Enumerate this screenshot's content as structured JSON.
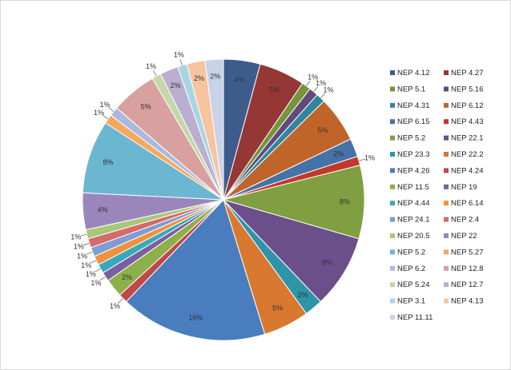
{
  "chart_data": {
    "type": "pie",
    "title": "",
    "legend_position": "right",
    "slices": [
      {
        "name": "NEP 4.12",
        "value": 4,
        "label": "4%",
        "color": "#3D5C8C"
      },
      {
        "name": "NEP 4.27",
        "value": 5,
        "label": "5%",
        "color": "#953735"
      },
      {
        "name": "NEP 5.1",
        "value": 1,
        "label": "1%",
        "color": "#77933C"
      },
      {
        "name": "NEP 5.16",
        "value": 1,
        "label": "1%",
        "color": "#604A7B"
      },
      {
        "name": "NEP 4.31",
        "value": 1,
        "label": "1%",
        "color": "#31859C"
      },
      {
        "name": "NEP 6.12",
        "value": 5,
        "label": "5%",
        "color": "#C0652A"
      },
      {
        "name": "NEP 6.15",
        "value": 2,
        "label": "2%",
        "color": "#4572A7"
      },
      {
        "name": "NEP 4.43",
        "value": 1,
        "label": "1%",
        "color": "#C0392B"
      },
      {
        "name": "NEP 5.2",
        "value": 8,
        "label": "8%",
        "color": "#7F9F40"
      },
      {
        "name": "NEP 22.1",
        "value": 8,
        "label": "8%",
        "color": "#6B4F8B"
      },
      {
        "name": "NEP 23.3",
        "value": 2,
        "label": "2%",
        "color": "#2E95A8"
      },
      {
        "name": "NEP 22.2",
        "value": 5,
        "label": "5%",
        "color": "#D9782F"
      },
      {
        "name": "NEP 4.26",
        "value": 16,
        "label": "16%",
        "color": "#4A7DBE"
      },
      {
        "name": "NEP 4.24",
        "value": 1,
        "label": "1%",
        "color": "#C04848"
      },
      {
        "name": "NEP 11.5",
        "value": 2,
        "label": "2%",
        "color": "#8DB04A"
      },
      {
        "name": "NEP 19",
        "value": 1,
        "label": "1%",
        "color": "#7B5FA0"
      },
      {
        "name": "NEP 4.44",
        "value": 1,
        "label": "1%",
        "color": "#3AA8BC"
      },
      {
        "name": "NEP 6.14",
        "value": 1,
        "label": "1%",
        "color": "#F0913D"
      },
      {
        "name": "NEP 24.1",
        "value": 1,
        "label": "1%",
        "color": "#7F9CD4"
      },
      {
        "name": "NEP 2.4",
        "value": 1,
        "label": "1%",
        "color": "#D46A6A"
      },
      {
        "name": "NEP 20.5",
        "value": 1,
        "label": "1%",
        "color": "#A9C877"
      },
      {
        "name": "NEP 22",
        "value": 4,
        "label": "4%",
        "color": "#9B86BC"
      },
      {
        "name": "NEP 5.2",
        "value": 8,
        "label": "8%",
        "color": "#6BB7D2"
      },
      {
        "name": "NEP 5.27",
        "value": 1,
        "label": "1%",
        "color": "#F5A85E"
      },
      {
        "name": "NEP 6.2",
        "value": 1,
        "label": "1%",
        "color": "#A9B9DF"
      },
      {
        "name": "NEP 12.8",
        "value": 5,
        "label": "5%",
        "color": "#D9A0A0"
      },
      {
        "name": "NEP 5.24",
        "value": 1,
        "label": "1%",
        "color": "#C2D8A6"
      },
      {
        "name": "NEP 12.7",
        "value": 2,
        "label": "2%",
        "color": "#BBAED0"
      },
      {
        "name": "NEP 3.1",
        "value": 1,
        "label": "1%",
        "color": "#A8D5E3"
      },
      {
        "name": "NEP 4.13",
        "value": 2,
        "label": "2%",
        "color": "#F7C4A0"
      },
      {
        "name": "NEP 11.11",
        "value": 2,
        "label": "2%",
        "color": "#C8D3E8"
      }
    ]
  }
}
